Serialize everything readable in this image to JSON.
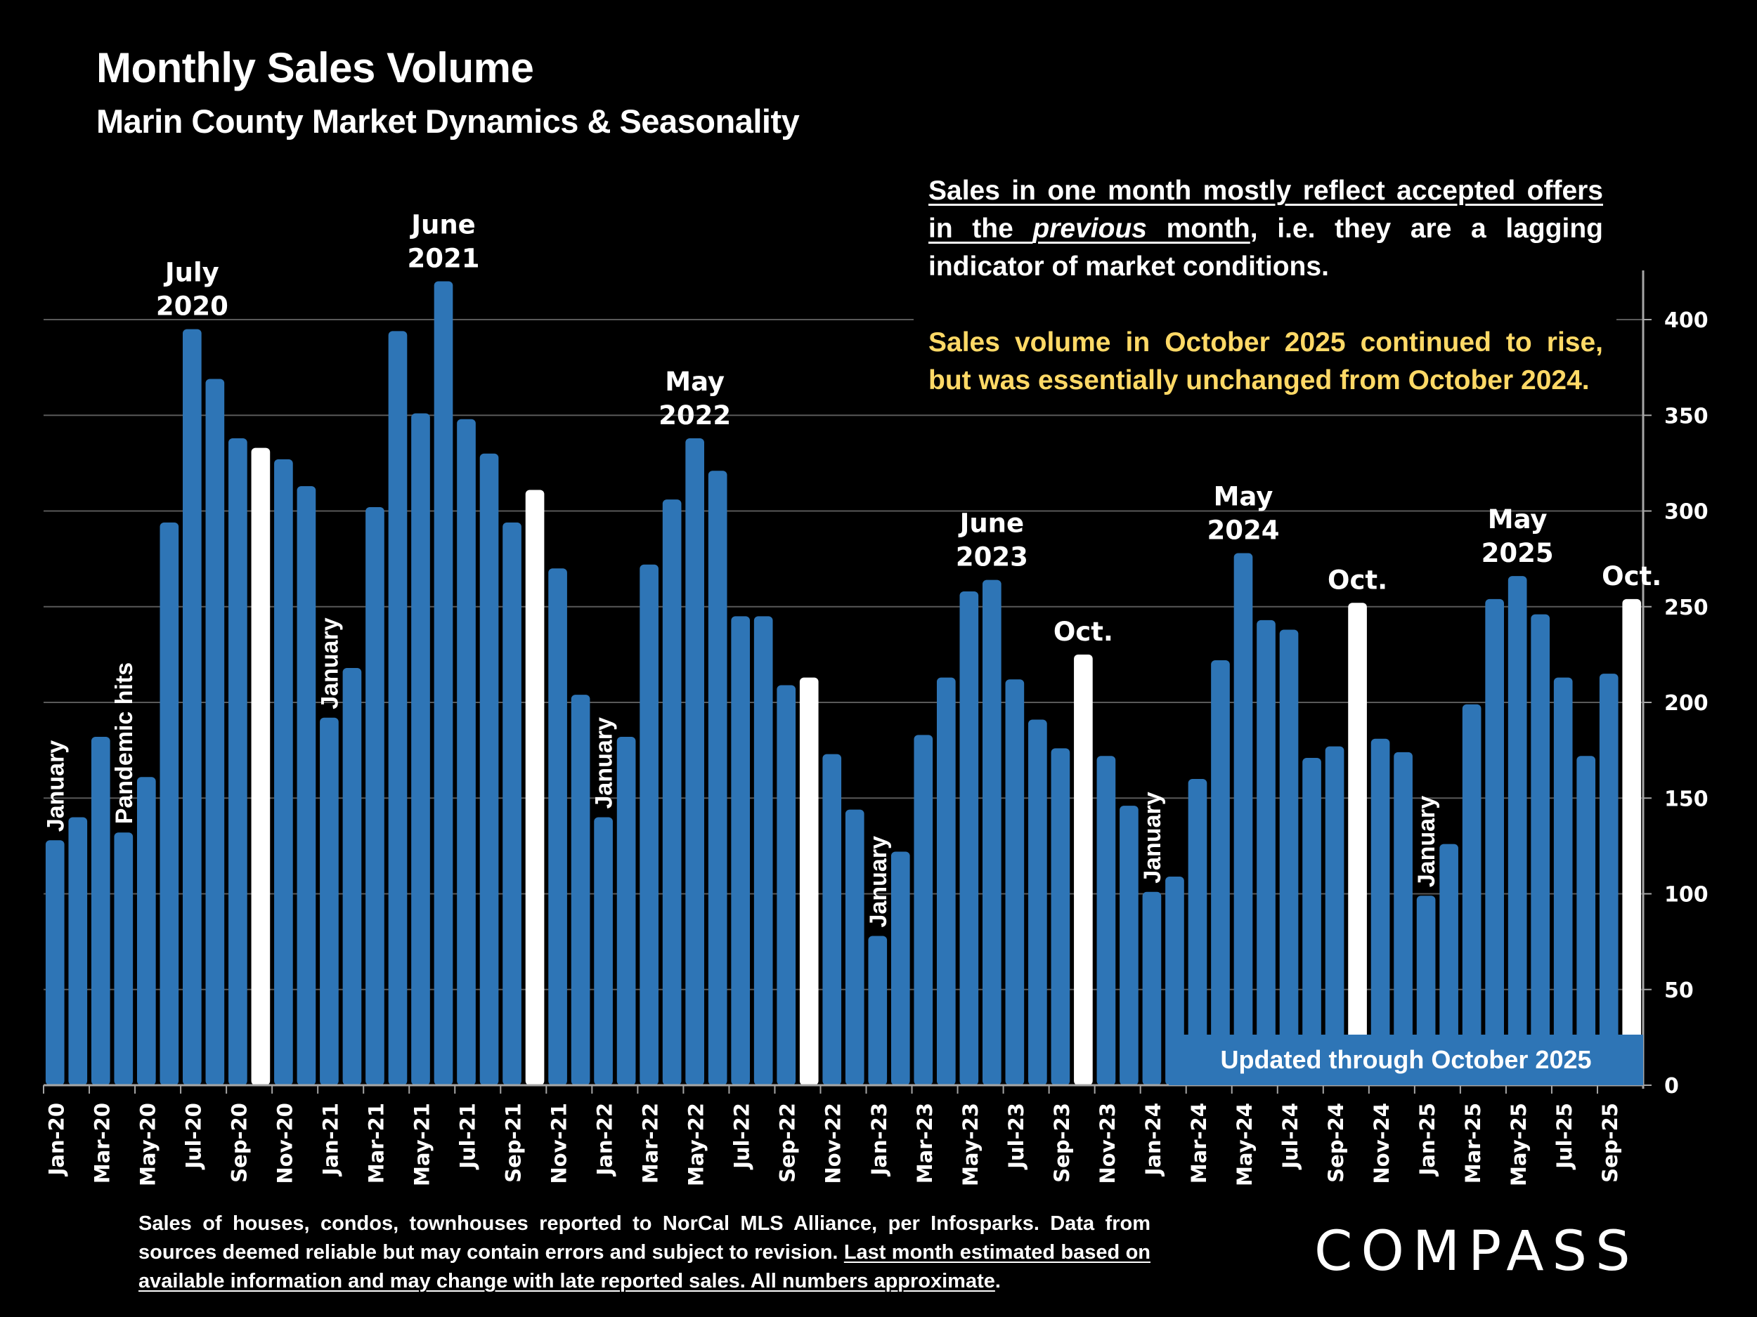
{
  "header": {
    "title": "Monthly Sales Volume",
    "subtitle": "Marin County Market Dynamics & Seasonality"
  },
  "note": {
    "line1_underlined_a": "Sales in one month mostly reflect accepted offers in the ",
    "line1_italic": "previous",
    "line1_underlined_b": " month",
    "line1_rest": ", i.e. they are a lagging indicator of market conditions.",
    "highlight": "Sales volume in October 2025 continued to rise, but was essentially unchanged from October 2024."
  },
  "updated_label": "Updated through October 2025",
  "footer": {
    "plain": "Sales of houses, condos, townhouses reported to NorCal MLS Alliance, per Infosparks. Data from sources deemed reliable but may contain errors and subject to revision. ",
    "underlined": "Last month estimated based on available information and may change with late reported sales. All numbers approximate",
    "end": "."
  },
  "logo": "COMPASS",
  "colors": {
    "bar": "#2E75B6",
    "highlight_bar": "#FFFFFF",
    "note_highlight": "#FFD966",
    "background": "#000000",
    "gridline": "#595959"
  },
  "chart_data": {
    "type": "bar",
    "title": "Monthly Sales Volume",
    "xlabel": "",
    "ylabel": "",
    "ylim": [
      0,
      420
    ],
    "yticks": [
      0,
      50,
      100,
      150,
      200,
      250,
      300,
      350,
      400
    ],
    "y_axis_side": "right",
    "grid": true,
    "categories": [
      "Jan-20",
      "Feb-20",
      "Mar-20",
      "Apr-20",
      "May-20",
      "Jun-20",
      "Jul-20",
      "Aug-20",
      "Sep-20",
      "Oct-20",
      "Nov-20",
      "Dec-20",
      "Jan-21",
      "Feb-21",
      "Mar-21",
      "Apr-21",
      "May-21",
      "Jun-21",
      "Jul-21",
      "Aug-21",
      "Sep-21",
      "Oct-21",
      "Nov-21",
      "Dec-21",
      "Jan-22",
      "Feb-22",
      "Mar-22",
      "Apr-22",
      "May-22",
      "Jun-22",
      "Jul-22",
      "Aug-22",
      "Sep-22",
      "Oct-22",
      "Nov-22",
      "Dec-22",
      "Jan-23",
      "Feb-23",
      "Mar-23",
      "Apr-23",
      "May-23",
      "Jun-23",
      "Jul-23",
      "Aug-23",
      "Sep-23",
      "Oct-23",
      "Nov-23",
      "Dec-23",
      "Jan-24",
      "Feb-24",
      "Mar-24",
      "Apr-24",
      "May-24",
      "Jun-24",
      "Jul-24",
      "Aug-24",
      "Sep-24",
      "Oct-24",
      "Nov-24",
      "Dec-24",
      "Jan-25",
      "Feb-25",
      "Mar-25",
      "Apr-25",
      "May-25",
      "Jun-25",
      "Jul-25",
      "Aug-25",
      "Sep-25",
      "Oct-25"
    ],
    "values": [
      128,
      140,
      182,
      132,
      161,
      294,
      395,
      369,
      338,
      333,
      327,
      313,
      192,
      218,
      302,
      394,
      351,
      420,
      348,
      330,
      294,
      311,
      270,
      204,
      140,
      182,
      272,
      306,
      338,
      321,
      245,
      245,
      209,
      213,
      173,
      144,
      78,
      122,
      183,
      213,
      258,
      264,
      212,
      191,
      176,
      225,
      172,
      146,
      101,
      109,
      160,
      222,
      278,
      243,
      238,
      171,
      177,
      252,
      181,
      174,
      99,
      126,
      199,
      254,
      266,
      246,
      213,
      172,
      215,
      254
    ],
    "highlighted": [
      "Oct-20",
      "Oct-21",
      "Oct-22",
      "Oct-23",
      "Oct-24",
      "Oct-25"
    ],
    "tick_labels": [
      "Jan-20",
      "Mar-20",
      "May-20",
      "Jul-20",
      "Sep-20",
      "Nov-20",
      "Jan-21",
      "Mar-21",
      "May-21",
      "Jul-21",
      "Sep-21",
      "Nov-21",
      "Jan-22",
      "Mar-22",
      "May-22",
      "Jul-22",
      "Sep-22",
      "Nov-22",
      "Jan-23",
      "Mar-23",
      "May-23",
      "Jul-23",
      "Sep-23",
      "Nov-23",
      "Jan-24",
      "Mar-24",
      "May-24",
      "Jul-24",
      "Sep-24",
      "Nov-24",
      "Jan-25",
      "Mar-25",
      "May-25",
      "Jul-25",
      "Sep-25"
    ],
    "annotations": [
      {
        "category": "Jan-20",
        "text": "January",
        "style": "vertical"
      },
      {
        "category": "Apr-20",
        "text": "Pandemic hits",
        "style": "vertical"
      },
      {
        "category": "Jul-20",
        "text": "July\n2020",
        "style": "above"
      },
      {
        "category": "Jan-21",
        "text": "January",
        "style": "vertical"
      },
      {
        "category": "Jun-21",
        "text": "June\n2021",
        "style": "above"
      },
      {
        "category": "Jan-22",
        "text": "January",
        "style": "vertical"
      },
      {
        "category": "May-22",
        "text": "May\n2022",
        "style": "above"
      },
      {
        "category": "Jan-23",
        "text": "January",
        "style": "vertical"
      },
      {
        "category": "Jun-23",
        "text": "June\n2023",
        "style": "above"
      },
      {
        "category": "Oct-23",
        "text": "Oct.",
        "style": "above"
      },
      {
        "category": "Jan-24",
        "text": "January",
        "style": "vertical"
      },
      {
        "category": "May-24",
        "text": "May\n2024",
        "style": "above"
      },
      {
        "category": "Oct-24",
        "text": "Oct.",
        "style": "above"
      },
      {
        "category": "Jan-25",
        "text": "January",
        "style": "vertical"
      },
      {
        "category": "May-25",
        "text": "May\n2025",
        "style": "above"
      },
      {
        "category": "Oct-25",
        "text": "Oct.",
        "style": "above"
      }
    ]
  }
}
